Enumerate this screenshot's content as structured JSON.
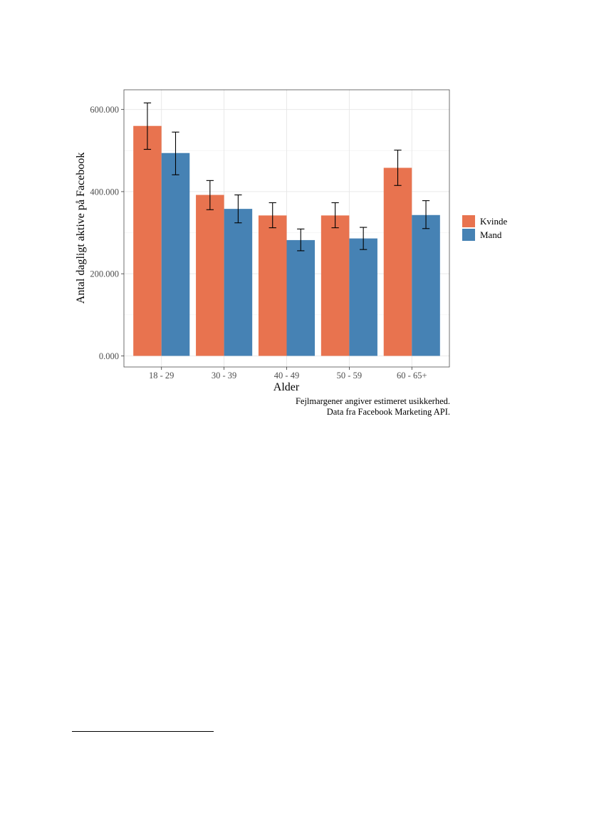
{
  "chart_data": {
    "type": "bar",
    "categories": [
      "18 - 29",
      "30 - 39",
      "40 - 49",
      "50 - 59",
      "60 - 65+"
    ],
    "series": [
      {
        "name": "Kvinde",
        "color": "#E8734F",
        "values": [
          560000,
          392000,
          342000,
          342000,
          458000
        ],
        "error_low": [
          503000,
          356000,
          312000,
          312000,
          415000
        ],
        "error_high": [
          616000,
          427000,
          373000,
          373000,
          501000
        ]
      },
      {
        "name": "Mand",
        "color": "#4682B4",
        "values": [
          494000,
          358000,
          282000,
          286000,
          343000
        ],
        "error_low": [
          441000,
          324000,
          256000,
          259000,
          310000
        ],
        "error_high": [
          545000,
          392000,
          309000,
          313000,
          378000
        ]
      }
    ],
    "xlabel": "Alder",
    "ylabel": "Antal dagligt aktive på Facebook",
    "ylim": [
      -27000,
      648000
    ],
    "yticks": [
      0,
      200000,
      400000,
      600000
    ],
    "ytick_labels": [
      "0.000",
      "200.000",
      "400.000",
      "600.000"
    ],
    "grid": true,
    "legend": "right"
  },
  "captions": [
    "Fejlmargener angiver estimeret usikkerhed.",
    "Data fra Facebook Marketing API."
  ]
}
